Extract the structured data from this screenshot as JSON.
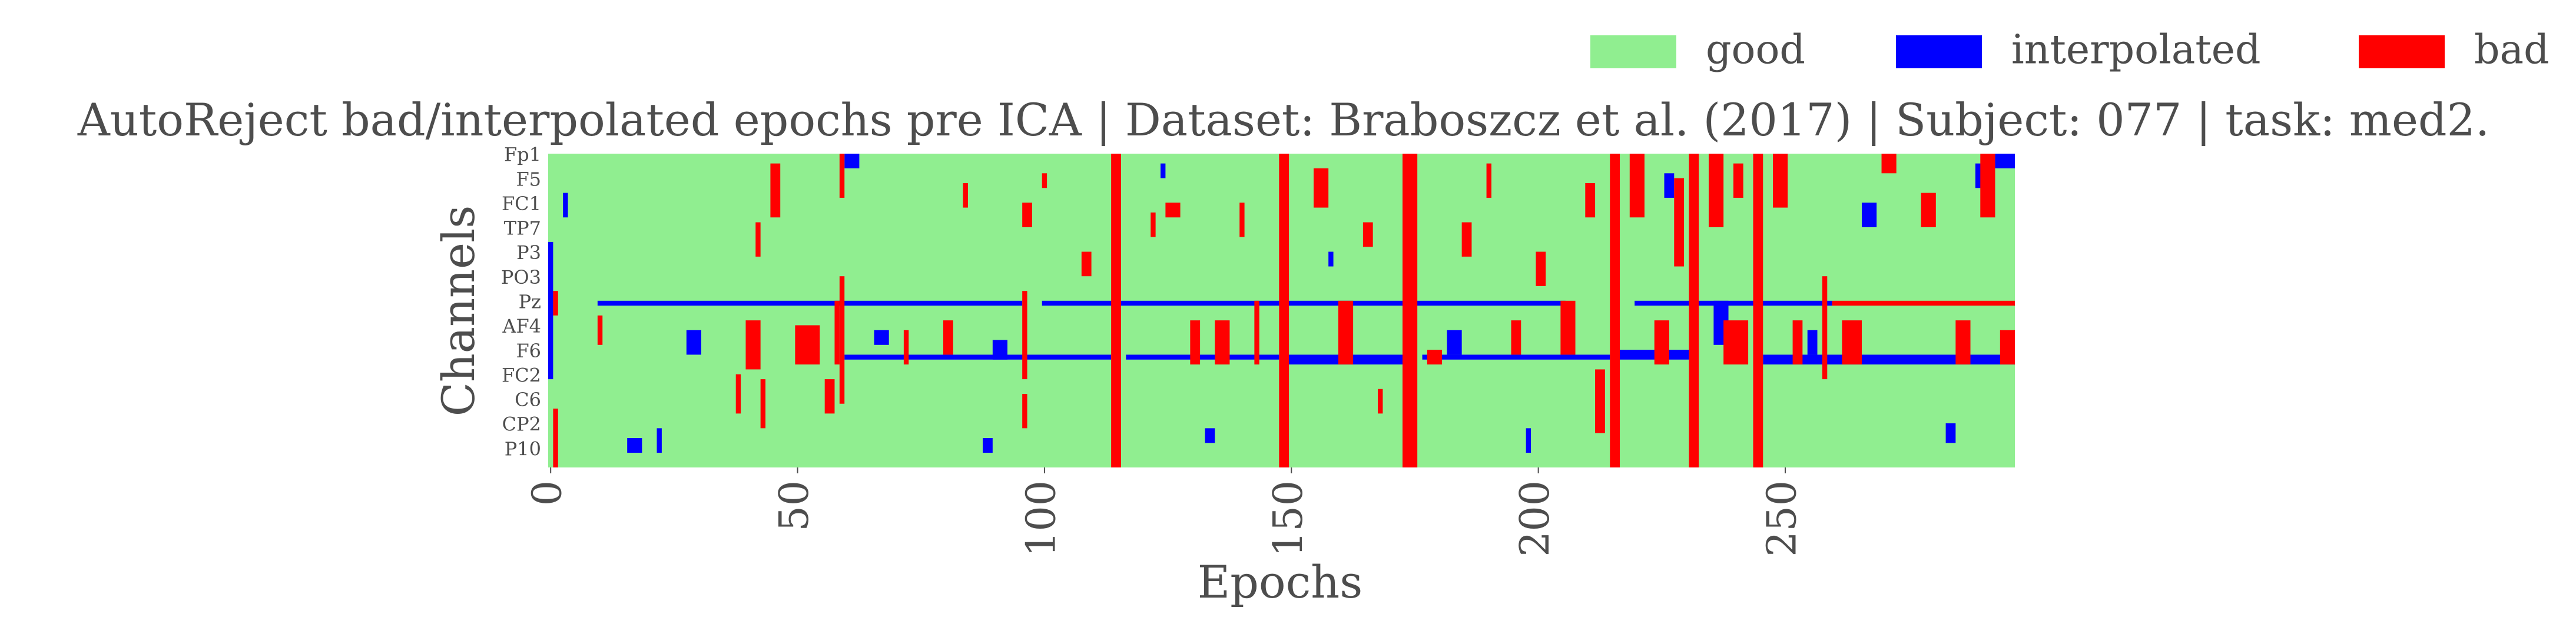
{
  "chart_data": {
    "type": "heatmap",
    "title": "AutoReject bad/interpolated epochs pre ICA | Dataset: Braboszcz et al. (2017) | Subject: 077 | task: med2.",
    "x_label": "Epochs",
    "y_label": "Channels",
    "xlim": [
      -0.5,
      296.5
    ],
    "xticks": [
      0,
      50,
      100,
      150,
      200,
      250
    ],
    "categories": [
      "Fp1",
      null,
      null,
      null,
      null,
      "F5",
      null,
      null,
      null,
      null,
      "FC1",
      null,
      null,
      null,
      null,
      "TP7",
      null,
      null,
      null,
      null,
      "P3",
      null,
      null,
      null,
      null,
      "PO3",
      null,
      null,
      null,
      null,
      "Pz",
      null,
      null,
      null,
      null,
      "AF4",
      null,
      null,
      null,
      null,
      "F6",
      null,
      null,
      null,
      null,
      "FC2",
      null,
      null,
      null,
      null,
      "C6",
      null,
      null,
      null,
      null,
      "CP2",
      null,
      null,
      null,
      null,
      "P10",
      null,
      null,
      null
    ],
    "series": [
      {
        "name": "good",
        "color": "#90ee90"
      },
      {
        "name": "interpolated",
        "color": "#0000ff",
        "cells": [
          [
            10,
            95,
            30,
            30
          ],
          [
            100,
            205,
            30,
            30
          ],
          [
            220,
            259,
            30,
            30
          ],
          [
            60,
            113,
            41,
            41
          ],
          [
            117,
            147,
            41,
            41
          ],
          [
            150,
            172,
            41,
            42
          ],
          [
            177,
            214,
            41,
            41
          ],
          [
            217,
            230,
            40,
            41
          ],
          [
            246,
            296,
            41,
            42
          ],
          [
            0,
            0,
            18,
            45
          ],
          [
            28,
            30,
            36,
            40
          ],
          [
            66,
            68,
            36,
            38
          ],
          [
            90,
            92,
            38,
            41
          ],
          [
            124,
            124,
            2,
            4
          ],
          [
            133,
            134,
            56,
            58
          ],
          [
            158,
            158,
            20,
            22
          ],
          [
            182,
            184,
            36,
            40
          ],
          [
            198,
            198,
            56,
            60
          ],
          [
            226,
            227,
            4,
            8
          ],
          [
            236,
            238,
            30,
            38
          ],
          [
            255,
            256,
            36,
            40
          ],
          [
            266,
            268,
            10,
            14
          ],
          [
            283,
            284,
            55,
            58
          ],
          [
            289,
            291,
            2,
            6
          ],
          [
            293,
            296,
            0,
            2
          ],
          [
            3,
            3,
            8,
            12
          ],
          [
            16,
            18,
            58,
            60
          ],
          [
            22,
            22,
            56,
            60
          ],
          [
            88,
            89,
            58,
            60
          ],
          [
            60,
            62,
            0,
            2
          ]
        ]
      },
      {
        "name": "bad",
        "color": "#ff0000",
        "cells": [
          [
            114,
            115,
            0,
            63
          ],
          [
            148,
            149,
            0,
            63
          ],
          [
            173,
            175,
            0,
            63
          ],
          [
            215,
            216,
            0,
            63
          ],
          [
            231,
            232,
            0,
            63
          ],
          [
            244,
            245,
            0,
            63
          ],
          [
            59,
            59,
            0,
            8
          ],
          [
            59,
            59,
            25,
            50
          ],
          [
            58,
            58,
            30,
            42
          ],
          [
            96,
            96,
            28,
            45
          ],
          [
            96,
            96,
            49,
            55
          ],
          [
            50,
            54,
            35,
            42
          ],
          [
            40,
            42,
            34,
            43
          ],
          [
            45,
            46,
            2,
            12
          ],
          [
            42,
            42,
            14,
            20
          ],
          [
            38,
            38,
            45,
            52
          ],
          [
            43,
            43,
            46,
            55
          ],
          [
            56,
            57,
            46,
            52
          ],
          [
            1,
            1,
            28,
            32
          ],
          [
            1,
            1,
            52,
            63
          ],
          [
            10,
            10,
            33,
            38
          ],
          [
            72,
            72,
            36,
            42
          ],
          [
            80,
            81,
            34,
            40
          ],
          [
            84,
            84,
            6,
            10
          ],
          [
            96,
            97,
            10,
            14
          ],
          [
            100,
            100,
            4,
            6
          ],
          [
            108,
            109,
            20,
            24
          ],
          [
            122,
            122,
            12,
            16
          ],
          [
            125,
            127,
            10,
            12
          ],
          [
            130,
            131,
            34,
            42
          ],
          [
            135,
            137,
            34,
            42
          ],
          [
            140,
            140,
            10,
            16
          ],
          [
            143,
            143,
            30,
            42
          ],
          [
            155,
            157,
            3,
            10
          ],
          [
            160,
            162,
            30,
            42
          ],
          [
            165,
            166,
            14,
            18
          ],
          [
            168,
            168,
            48,
            52
          ],
          [
            178,
            180,
            40,
            42
          ],
          [
            185,
            186,
            14,
            20
          ],
          [
            190,
            190,
            2,
            8
          ],
          [
            195,
            196,
            34,
            40
          ],
          [
            200,
            201,
            20,
            26
          ],
          [
            205,
            207,
            30,
            40
          ],
          [
            210,
            211,
            6,
            12
          ],
          [
            212,
            213,
            44,
            56
          ],
          [
            219,
            221,
            0,
            12
          ],
          [
            224,
            226,
            34,
            42
          ],
          [
            228,
            229,
            5,
            22
          ],
          [
            235,
            237,
            0,
            14
          ],
          [
            238,
            242,
            34,
            42
          ],
          [
            240,
            241,
            2,
            8
          ],
          [
            248,
            250,
            0,
            10
          ],
          [
            252,
            253,
            34,
            42
          ],
          [
            258,
            258,
            25,
            45
          ],
          [
            262,
            265,
            34,
            42
          ],
          [
            270,
            272,
            0,
            3
          ],
          [
            278,
            280,
            8,
            14
          ],
          [
            285,
            287,
            34,
            42
          ],
          [
            290,
            292,
            0,
            12
          ],
          [
            294,
            296,
            36,
            42
          ],
          [
            260,
            296,
            30,
            30
          ]
        ]
      }
    ]
  }
}
